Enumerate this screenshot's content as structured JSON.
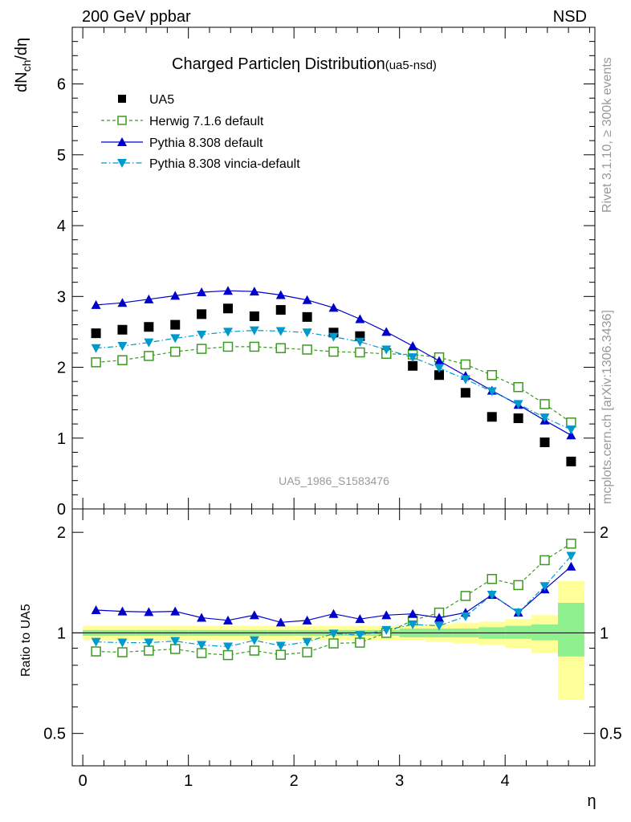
{
  "header": {
    "energy_label": "200 GeV ppbar",
    "process_label": "NSD",
    "title_main": "Charged Particle",
    "title_eta": "η",
    "title_rest": " Distribution",
    "title_tag": "(ua5-nsd)",
    "analysis_id": "UA5_1986_S1583476",
    "rivet_note": "Rivet 3.1.10, ≥ 300k events",
    "mcplots_note": "mcplots.cern.ch [arXiv:1306.3436]"
  },
  "axes": {
    "upper_ylabel_main": "dN",
    "upper_ylabel_sub": "ch",
    "upper_ylabel_tail": "/dη",
    "lower_ylabel": "Ratio to UA5",
    "xlabel": "η"
  },
  "legend": {
    "data": "UA5",
    "herwig": "Herwig 7.1.6 default",
    "pythia": "Pythia 8.308 default",
    "vincia": "Pythia 8.308 vincia-default"
  },
  "colors": {
    "data": "#000000",
    "herwig": "#3a9a1e",
    "pythia": "#0000cc",
    "vincia": "#0099cc",
    "band_inner": "#8ef08e",
    "band_outer": "#ffff99"
  },
  "chart_data": [
    {
      "type": "line",
      "name": "upper",
      "xlim": [
        -0.1,
        4.85
      ],
      "ylim": [
        0,
        6.8
      ],
      "xticks": [
        0,
        1,
        2,
        3,
        4
      ],
      "yticks": [
        0,
        1,
        2,
        3,
        4,
        5,
        6
      ],
      "x": [
        0.125,
        0.375,
        0.625,
        0.875,
        1.125,
        1.375,
        1.625,
        1.875,
        2.125,
        2.375,
        2.625,
        2.875,
        3.125,
        3.375,
        3.625,
        3.875,
        4.125,
        4.375,
        4.625
      ],
      "series": [
        {
          "name": "UA5",
          "key": "data",
          "values": [
            2.48,
            2.53,
            2.57,
            2.6,
            2.75,
            2.83,
            2.72,
            2.81,
            2.71,
            2.49,
            2.44,
            2.2,
            2.02,
            1.89,
            1.64,
            1.3,
            1.28,
            0.94,
            0.67
          ]
        },
        {
          "name": "Herwig 7.1.6 default",
          "key": "herwig",
          "values": [
            2.07,
            2.1,
            2.16,
            2.22,
            2.26,
            2.29,
            2.29,
            2.27,
            2.25,
            2.22,
            2.21,
            2.19,
            2.18,
            2.14,
            2.04,
            1.89,
            1.72,
            1.48,
            1.22
          ]
        },
        {
          "name": "Pythia 8.308 default",
          "key": "pythia",
          "values": [
            2.88,
            2.91,
            2.96,
            3.01,
            3.06,
            3.08,
            3.07,
            3.02,
            2.95,
            2.84,
            2.68,
            2.5,
            2.3,
            2.09,
            1.88,
            1.67,
            1.47,
            1.25,
            1.04
          ]
        },
        {
          "name": "Pythia 8.308 vincia-default",
          "key": "vincia",
          "values": [
            2.27,
            2.3,
            2.35,
            2.41,
            2.46,
            2.5,
            2.52,
            2.51,
            2.49,
            2.43,
            2.36,
            2.25,
            2.14,
            1.99,
            1.83,
            1.66,
            1.48,
            1.29,
            1.12
          ]
        }
      ]
    },
    {
      "type": "line",
      "name": "ratio",
      "ylim": [
        0.4,
        2.35
      ],
      "yticks": [
        0.5,
        1,
        2
      ],
      "series": [
        {
          "name": "Herwig 7.1.6 default",
          "key": "herwig",
          "values": [
            0.88,
            0.875,
            0.885,
            0.895,
            0.87,
            0.858,
            0.885,
            0.86,
            0.875,
            0.93,
            0.935,
            1.0,
            1.09,
            1.15,
            1.29,
            1.45,
            1.39,
            1.65,
            1.85
          ]
        },
        {
          "name": "Pythia 8.308 default",
          "key": "pythia",
          "values": [
            1.17,
            1.16,
            1.155,
            1.16,
            1.11,
            1.09,
            1.13,
            1.075,
            1.09,
            1.14,
            1.1,
            1.13,
            1.14,
            1.11,
            1.15,
            1.3,
            1.15,
            1.35,
            1.58
          ]
        },
        {
          "name": "Pythia 8.308 vincia-default",
          "key": "vincia",
          "values": [
            0.94,
            0.935,
            0.935,
            0.945,
            0.92,
            0.91,
            0.95,
            0.915,
            0.94,
            0.995,
            0.985,
            1.02,
            1.06,
            1.05,
            1.12,
            1.3,
            1.15,
            1.38,
            1.7
          ]
        }
      ],
      "band_inner": [
        [
          0.98,
          1.02
        ],
        [
          0.98,
          1.02
        ],
        [
          0.98,
          1.02
        ],
        [
          0.98,
          1.02
        ],
        [
          0.98,
          1.02
        ],
        [
          0.98,
          1.02
        ],
        [
          0.98,
          1.02
        ],
        [
          0.98,
          1.02
        ],
        [
          0.98,
          1.02
        ],
        [
          0.98,
          1.02
        ],
        [
          0.98,
          1.02
        ],
        [
          0.98,
          1.02
        ],
        [
          0.97,
          1.03
        ],
        [
          0.97,
          1.03
        ],
        [
          0.97,
          1.03
        ],
        [
          0.96,
          1.04
        ],
        [
          0.96,
          1.05
        ],
        [
          0.95,
          1.06
        ],
        [
          0.85,
          1.23
        ]
      ],
      "band_outer": [
        [
          0.95,
          1.05
        ],
        [
          0.95,
          1.05
        ],
        [
          0.95,
          1.05
        ],
        [
          0.95,
          1.05
        ],
        [
          0.95,
          1.05
        ],
        [
          0.95,
          1.05
        ],
        [
          0.95,
          1.05
        ],
        [
          0.95,
          1.05
        ],
        [
          0.95,
          1.05
        ],
        [
          0.95,
          1.05
        ],
        [
          0.95,
          1.05
        ],
        [
          0.95,
          1.05
        ],
        [
          0.95,
          1.05
        ],
        [
          0.94,
          1.06
        ],
        [
          0.93,
          1.07
        ],
        [
          0.92,
          1.08
        ],
        [
          0.9,
          1.1
        ],
        [
          0.87,
          1.13
        ],
        [
          0.63,
          1.43
        ]
      ]
    }
  ]
}
